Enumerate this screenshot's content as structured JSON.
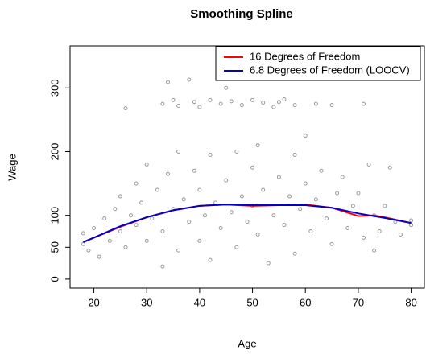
{
  "chart_data": {
    "type": "scatter",
    "title": "Smoothing Spline",
    "x_label": "Age",
    "y_label": "Wage",
    "xlim": [
      15.5,
      82.5
    ],
    "ylim": [
      -14,
      366
    ],
    "xticks": [
      20,
      30,
      40,
      50,
      60,
      70,
      80
    ],
    "yticks": [
      0,
      50,
      100,
      200,
      300
    ],
    "legend": "topright",
    "points": {
      "color": "#9a9a9a",
      "x": [
        26,
        33,
        34,
        36,
        38,
        39,
        40,
        42,
        44,
        46,
        48,
        50,
        52,
        54,
        56,
        58,
        60,
        62,
        65,
        71,
        35,
        45,
        55,
        18,
        18,
        19,
        20,
        21,
        22,
        23,
        24,
        25,
        25,
        26,
        27,
        28,
        28,
        29,
        30,
        30,
        31,
        32,
        33,
        33,
        34,
        35,
        36,
        36,
        37,
        38,
        39,
        40,
        40,
        41,
        42,
        42,
        43,
        44,
        45,
        46,
        47,
        47,
        48,
        49,
        50,
        50,
        51,
        51,
        52,
        53,
        54,
        55,
        56,
        57,
        58,
        58,
        59,
        60,
        61,
        62,
        63,
        64,
        65,
        66,
        67,
        68,
        69,
        70,
        71,
        72,
        73,
        74,
        75,
        76,
        77,
        80,
        80,
        73,
        78
      ],
      "y": [
        268,
        275,
        309,
        272,
        313,
        278,
        270,
        281,
        275,
        279,
        273,
        281,
        277,
        270,
        282,
        273,
        225,
        275,
        273,
        275,
        281,
        300,
        278,
        55,
        72,
        45,
        80,
        35,
        95,
        60,
        110,
        75,
        130,
        50,
        100,
        150,
        85,
        120,
        60,
        180,
        95,
        140,
        75,
        20,
        165,
        110,
        200,
        45,
        125,
        90,
        170,
        60,
        140,
        100,
        195,
        30,
        120,
        80,
        155,
        105,
        200,
        50,
        130,
        90,
        175,
        115,
        210,
        70,
        140,
        25,
        100,
        160,
        85,
        130,
        40,
        195,
        110,
        150,
        75,
        125,
        170,
        95,
        55,
        135,
        160,
        80,
        115,
        135,
        65,
        180,
        100,
        75,
        115,
        175,
        90,
        92,
        85,
        45,
        70
      ]
    },
    "series": [
      {
        "name": "16 Degrees of Freedom",
        "color": "#ff0000",
        "x": [
          18,
          20,
          25,
          30,
          35,
          40,
          45,
          50,
          55,
          60,
          65,
          70,
          73,
          75,
          80
        ],
        "values": [
          58,
          65,
          82,
          97,
          108,
          115,
          117,
          115,
          116,
          117,
          112,
          99,
          100,
          97,
          88
        ]
      },
      {
        "name": "6.8 Degrees of Freedom (LOOCV)",
        "color": "#0000cc",
        "x": [
          18,
          20,
          25,
          30,
          35,
          40,
          45,
          50,
          55,
          60,
          65,
          70,
          75,
          80
        ],
        "values": [
          58,
          65,
          83,
          97,
          108,
          115,
          117,
          116,
          116,
          116,
          112,
          103,
          96,
          88
        ]
      }
    ]
  }
}
